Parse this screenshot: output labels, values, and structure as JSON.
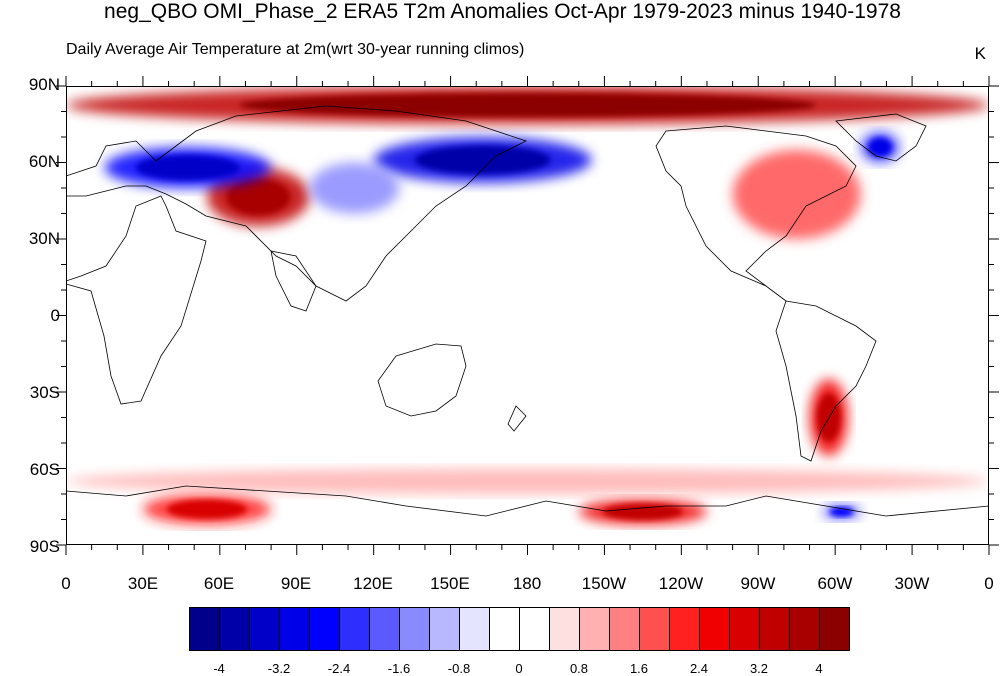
{
  "title": "neg_QBO OMI_Phase_2 ERA5 T2m Anomalies Oct-Apr 1979-2023 minus 1940-1978",
  "subtitle": "Daily Average Air Temperature at 2m",
  "subtitle_extra": "(wrt 30-year running climos)",
  "units": "K",
  "lat_labels": [
    "90N",
    "60N",
    "30N",
    "0",
    "30S",
    "60S",
    "90S"
  ],
  "lon_labels": [
    "0",
    "30E",
    "60E",
    "90E",
    "120E",
    "150E",
    "180",
    "150W",
    "120W",
    "90W",
    "60W",
    "30W",
    "0"
  ],
  "colorbar": {
    "colors": [
      "#00008b",
      "#0000a8",
      "#0000c8",
      "#0000e8",
      "#0000ff",
      "#2e2eff",
      "#5a5aff",
      "#8a8aff",
      "#b8b8ff",
      "#e4e4ff",
      "#ffffff",
      "#ffffff",
      "#ffe0e0",
      "#ffb0b0",
      "#ff8080",
      "#ff5050",
      "#ff2020",
      "#f00000",
      "#d80000",
      "#c00000",
      "#a80000",
      "#8b0000"
    ],
    "labels": [
      "-4",
      "-3.2",
      "-2.4",
      "-1.6",
      "-0.8",
      "0",
      "0.8",
      "1.6",
      "2.4",
      "3.2",
      "4"
    ]
  },
  "map": {
    "type": "filled contour map",
    "lon_range": [
      0,
      360
    ],
    "lat_range": [
      -90,
      90
    ],
    "anomaly_regions": [
      {
        "name": "arctic-warm",
        "lat": [
          75,
          90
        ],
        "lon": [
          0,
          360
        ],
        "value": 3.2
      },
      {
        "name": "central-asia-warm",
        "lat": [
          35,
          58
        ],
        "lon": [
          55,
          95
        ],
        "value": 3.0
      },
      {
        "name": "europe-russia-cold",
        "lat": [
          50,
          66
        ],
        "lon": [
          15,
          80
        ],
        "value": -2.8
      },
      {
        "name": "siberia-cold",
        "lat": [
          52,
          70
        ],
        "lon": [
          120,
          205
        ],
        "value": -3.2
      },
      {
        "name": "east-asia-cold",
        "lat": [
          40,
          60
        ],
        "lon": [
          95,
          130
        ],
        "value": -1.6
      },
      {
        "name": "greenland-cold",
        "lat": [
          60,
          72
        ],
        "lon": [
          310,
          325
        ],
        "value": -2.4
      },
      {
        "name": "north-america-warm",
        "lat": [
          30,
          65
        ],
        "lon": [
          260,
          310
        ],
        "value": 1.6
      },
      {
        "name": "south-america-warm",
        "lat": [
          -55,
          -25
        ],
        "lon": [
          290,
          305
        ],
        "value": 2.4
      },
      {
        "name": "antarctic-warm-1",
        "lat": [
          -82,
          -70
        ],
        "lon": [
          30,
          80
        ],
        "value": 2.0
      },
      {
        "name": "antarctic-warm-2",
        "lat": [
          -82,
          -72
        ],
        "lon": [
          200,
          250
        ],
        "value": 2.4
      },
      {
        "name": "antarctic-cold",
        "lat": [
          -80,
          -74
        ],
        "lon": [
          295,
          310
        ],
        "value": -2.0
      },
      {
        "name": "southern-ocean-warm",
        "lat": [
          -70,
          -60
        ],
        "lon": [
          0,
          360
        ],
        "value": 0.8
      }
    ]
  }
}
